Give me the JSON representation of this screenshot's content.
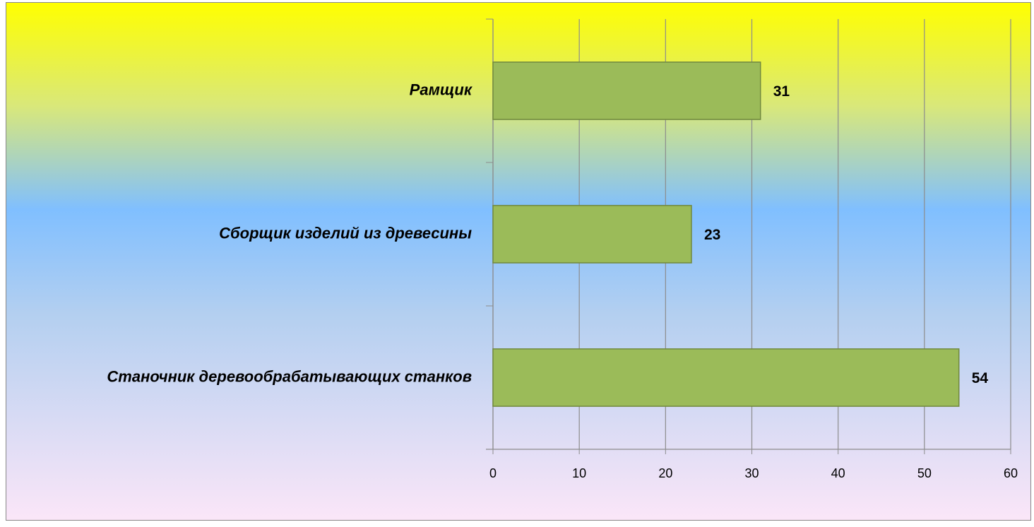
{
  "chart_data": {
    "type": "bar",
    "orientation": "horizontal",
    "categories": [
      "Рамщик",
      "Сборщик изделий из древесины",
      "Станочник деревообрабатывающих станков"
    ],
    "values": [
      31,
      23,
      54
    ],
    "color": "#9bbb59",
    "xlim": [
      0,
      60
    ],
    "xticks": [
      0,
      10,
      20,
      30,
      40,
      50,
      60
    ],
    "grid": true
  }
}
